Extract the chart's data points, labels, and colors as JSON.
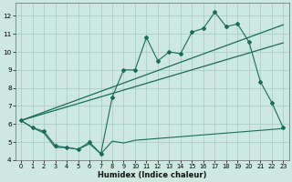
{
  "xlabel": "Humidex (Indice chaleur)",
  "background_color": "#cce8e0",
  "grid_color": "#aacfc8",
  "line_color": "#1a6b5a",
  "xlim": [
    -0.5,
    23.5
  ],
  "ylim": [
    4,
    12.7
  ],
  "yticks": [
    4,
    5,
    6,
    7,
    8,
    9,
    10,
    11,
    12
  ],
  "xticks": [
    0,
    1,
    2,
    3,
    4,
    5,
    6,
    7,
    8,
    9,
    10,
    11,
    12,
    13,
    14,
    15,
    16,
    17,
    18,
    19,
    20,
    21,
    22,
    23
  ],
  "series_bottom_x": [
    0,
    1,
    2,
    3,
    4,
    5,
    6,
    7,
    8,
    9,
    10,
    11,
    12,
    13,
    14,
    15,
    16,
    17,
    18,
    19,
    20,
    21,
    22,
    23
  ],
  "series_bottom_y": [
    6.2,
    5.8,
    5.5,
    4.7,
    4.7,
    4.6,
    4.9,
    4.35,
    5.05,
    4.95,
    5.1,
    5.15,
    5.2,
    5.25,
    5.3,
    5.35,
    5.4,
    5.45,
    5.5,
    5.55,
    5.6,
    5.65,
    5.7,
    5.75
  ],
  "series_jagged_x": [
    0,
    1,
    2,
    3,
    4,
    5,
    6,
    7,
    8,
    9,
    10,
    11,
    12,
    13,
    14,
    15,
    16,
    17,
    18,
    19,
    20,
    21,
    22,
    23
  ],
  "series_jagged_y": [
    6.2,
    5.8,
    5.6,
    4.8,
    4.7,
    4.6,
    5.0,
    4.35,
    7.5,
    9.0,
    9.0,
    10.8,
    9.5,
    10.0,
    9.9,
    11.1,
    11.3,
    12.2,
    11.4,
    11.55,
    10.55,
    8.35,
    7.2,
    5.8
  ],
  "series_trend1_x": [
    0,
    20
  ],
  "series_trend1_y": [
    6.2,
    10.55
  ],
  "series_trend2_x": [
    0,
    20
  ],
  "series_trend2_y": [
    6.2,
    11.55
  ]
}
